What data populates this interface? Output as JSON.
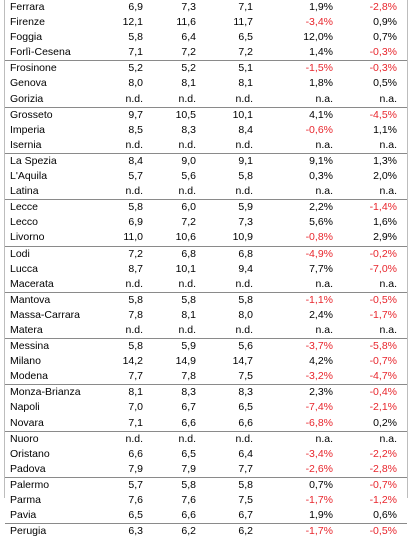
{
  "colors": {
    "negative": "#e8262d",
    "text": "#000000",
    "rule": "#8a8a8a"
  },
  "rows": [
    [
      "Ferrara",
      "6,9",
      "7,3",
      "7,1",
      "1,9%",
      "-2,8%"
    ],
    [
      "Firenze",
      "12,1",
      "11,6",
      "11,7",
      "-3,4%",
      "0,9%"
    ],
    [
      "Foggia",
      "5,8",
      "6,4",
      "6,5",
      "12,0%",
      "0,7%"
    ],
    [
      "Forlì-Cesena",
      "7,1",
      "7,2",
      "7,2",
      "1,4%",
      "-0,3%"
    ],
    [
      "Frosinone",
      "5,2",
      "5,2",
      "5,1",
      "-1,5%",
      "-0,3%"
    ],
    [
      "Genova",
      "8,0",
      "8,1",
      "8,1",
      "1,8%",
      "0,5%"
    ],
    [
      "Gorizia",
      "n.d.",
      "n.d.",
      "n.d.",
      "n.a.",
      "n.a."
    ],
    [
      "Grosseto",
      "9,7",
      "10,5",
      "10,1",
      "4,1%",
      "-4,5%"
    ],
    [
      "Imperia",
      "8,5",
      "8,3",
      "8,4",
      "-0,6%",
      "1,1%"
    ],
    [
      "Isernia",
      "n.d.",
      "n.d.",
      "n.d.",
      "n.a.",
      "n.a."
    ],
    [
      "La Spezia",
      "8,4",
      "9,0",
      "9,1",
      "9,1%",
      "1,3%"
    ],
    [
      "L'Aquila",
      "5,7",
      "5,6",
      "5,8",
      "0,3%",
      "2,0%"
    ],
    [
      "Latina",
      "n.d.",
      "n.d.",
      "n.d.",
      "n.a.",
      "n.a."
    ],
    [
      "Lecce",
      "5,8",
      "6,0",
      "5,9",
      "2,2%",
      "-1,4%"
    ],
    [
      "Lecco",
      "6,9",
      "7,2",
      "7,3",
      "5,6%",
      "1,6%"
    ],
    [
      "Livorno",
      "11,0",
      "10,6",
      "10,9",
      "-0,8%",
      "2,9%"
    ],
    [
      "Lodi",
      "7,2",
      "6,8",
      "6,8",
      "-4,9%",
      "-0,2%"
    ],
    [
      "Lucca",
      "8,7",
      "10,1",
      "9,4",
      "7,7%",
      "-7,0%"
    ],
    [
      "Macerata",
      "n.d.",
      "n.d.",
      "n.d.",
      "n.a.",
      "n.a."
    ],
    [
      "Mantova",
      "5,8",
      "5,8",
      "5,8",
      "-1,1%",
      "-0,5%"
    ],
    [
      "Massa-Carrara",
      "7,8",
      "8,1",
      "8,0",
      "2,4%",
      "-1,7%"
    ],
    [
      "Matera",
      "n.d.",
      "n.d.",
      "n.d.",
      "n.a.",
      "n.a."
    ],
    [
      "Messina",
      "5,8",
      "5,9",
      "5,6",
      "-3,7%",
      "-5,8%"
    ],
    [
      "Milano",
      "14,2",
      "14,9",
      "14,7",
      "4,2%",
      "-0,7%"
    ],
    [
      "Modena",
      "7,7",
      "7,8",
      "7,5",
      "-3,2%",
      "-4,7%"
    ],
    [
      "Monza-Brianza",
      "8,1",
      "8,3",
      "8,3",
      "2,3%",
      "-0,4%"
    ],
    [
      "Napoli",
      "7,0",
      "6,7",
      "6,5",
      "-7,4%",
      "-2,1%"
    ],
    [
      "Novara",
      "7,1",
      "6,6",
      "6,6",
      "-6,8%",
      "0,2%"
    ],
    [
      "Nuoro",
      "n.d.",
      "n.d.",
      "n.d.",
      "n.a.",
      "n.a."
    ],
    [
      "Oristano",
      "6,6",
      "6,5",
      "6,4",
      "-3,4%",
      "-2,2%"
    ],
    [
      "Padova",
      "7,9",
      "7,9",
      "7,7",
      "-2,6%",
      "-2,8%"
    ],
    [
      "Palermo",
      "5,7",
      "5,8",
      "5,8",
      "0,7%",
      "-0,7%"
    ],
    [
      "Parma",
      "7,6",
      "7,6",
      "7,5",
      "-1,7%",
      "-1,2%"
    ],
    [
      "Pavia",
      "6,5",
      "6,6",
      "6,7",
      "1,9%",
      "0,6%"
    ],
    [
      "Perugia",
      "6,3",
      "6,2",
      "6,2",
      "-1,7%",
      "-0,5%"
    ]
  ]
}
